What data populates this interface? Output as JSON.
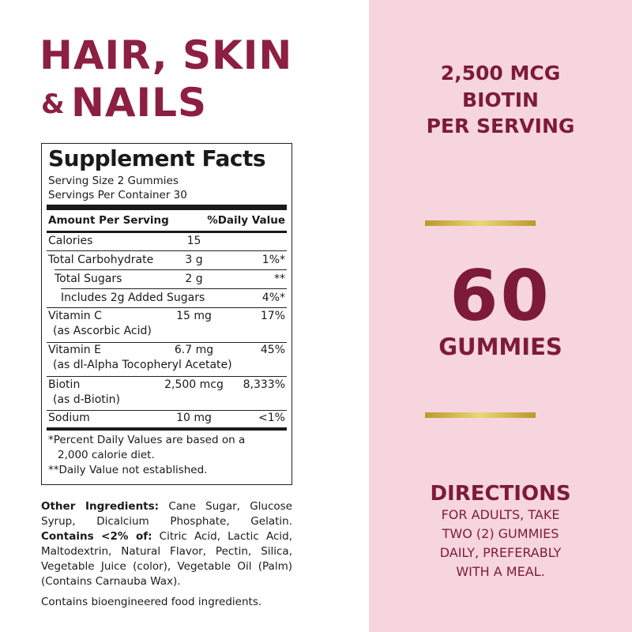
{
  "title": {
    "line1": "HAIR, SKIN",
    "amp": "&",
    "line2": "NAILS"
  },
  "facts": {
    "heading": "Supplement Facts",
    "serving_size": "Serving Size 2 Gummies",
    "servings_per_container": "Servings Per Container 30",
    "col_amount": "Amount Per Serving",
    "col_dv": "%Daily Value",
    "rows": [
      {
        "name": "Calories",
        "sub": "",
        "amount": "15",
        "dv": ""
      },
      {
        "name": "Total Carbohydrate",
        "sub": "",
        "amount": "3 g",
        "dv": "1%*"
      },
      {
        "name": "Total Sugars",
        "sub": "",
        "amount": "2 g",
        "dv": "**"
      },
      {
        "name": "Includes 2g Added Sugars",
        "sub": "",
        "amount": "",
        "dv": "4%*"
      },
      {
        "name": "Vitamin C",
        "sub": "(as Ascorbic Acid)",
        "amount": "15 mg",
        "dv": "17%"
      },
      {
        "name": "Vitamin E",
        "sub": "(as dl-Alpha Tocopheryl Acetate)",
        "amount": "6.7 mg",
        "dv": "45%"
      },
      {
        "name": "Biotin",
        "sub": "(as d-Biotin)",
        "amount": "2,500 mcg",
        "dv": "8,333%"
      },
      {
        "name": "Sodium",
        "sub": "",
        "amount": "10 mg",
        "dv": "<1%"
      }
    ],
    "footnote1": "*Percent Daily Values are based on a",
    "footnote1b": "2,000 calorie diet.",
    "footnote2": "**Daily Value not established."
  },
  "ingredients": {
    "label": "Other Ingredients:",
    "text": " Cane Sugar, Glucose Syrup, Dicalcium Phosphate, Gelatin. ",
    "contains_label": "Contains <2% of:",
    "contains_text": " Citric Acid, Lactic Acid, Maltodextrin, Natural Flavor, Pectin, Silica, Vegetable Juice (color), Vegetable Oil (Palm) (Contains Carnauba Wax).",
    "bioengineered": "Contains bioengineered food ingredients."
  },
  "right": {
    "biotin_line1": "2,500 MCG",
    "biotin_line2": "BIOTIN",
    "biotin_line3": "PER SERVING",
    "count": "60",
    "count_label": "GUMMIES",
    "directions_title": "DIRECTIONS",
    "directions": [
      "FOR ADULTS, TAKE",
      "TWO (2) GUMMIES",
      "DAILY, PREFERABLY",
      "WITH A MEAL."
    ]
  },
  "colors": {
    "brand": "#8c1f42",
    "panel": "#f6d5df",
    "gold": "#d4bc55"
  }
}
